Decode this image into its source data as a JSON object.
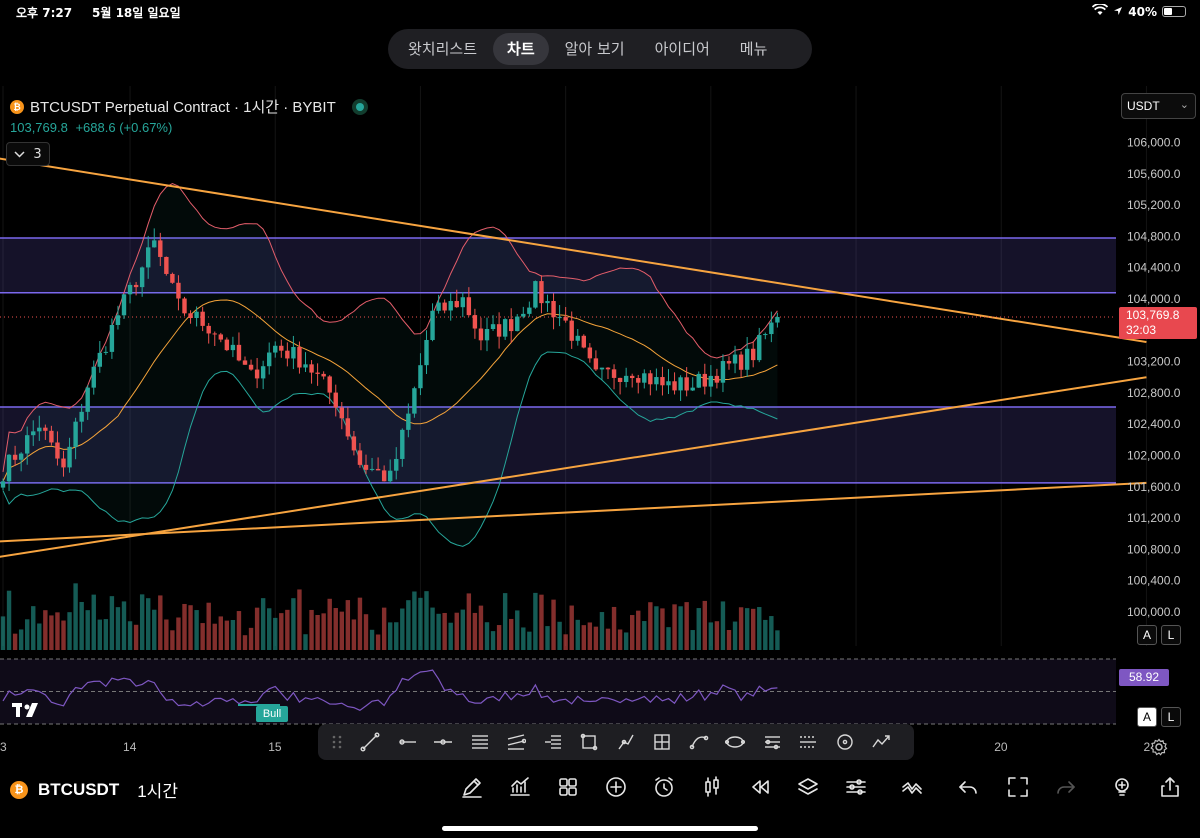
{
  "status_bar": {
    "time": "오후 7:27",
    "date": "5월 18일 일요일",
    "battery": "40%",
    "battery_level": 0.4
  },
  "top_tabs": [
    {
      "label": "왓치리스트",
      "active": false
    },
    {
      "label": "차트",
      "active": true
    },
    {
      "label": "알아 보기",
      "active": false
    },
    {
      "label": "아이디어",
      "active": false
    },
    {
      "label": "메뉴",
      "active": false
    }
  ],
  "legend": {
    "symbol_title": "BTCUSDT Perpetual Contract · 1시간 · BYBIT",
    "last_price": "103,769.8",
    "change": "+688.6 (+0.67%)",
    "collapsed_count": "3"
  },
  "currency": "USDT",
  "price_tag": {
    "price": "103,769.8",
    "countdown": "32:03"
  },
  "rsi_value": "58.92",
  "bull_label": "Bull",
  "scale_buttons": {
    "auto": "A",
    "log": "L"
  },
  "colors": {
    "bull": "#26a69a",
    "bear": "#ef5350",
    "trendline": "#f7a440",
    "zone": "#6a5acd",
    "bb_upper": "#e35d6a",
    "bb_lower": "#26a69a",
    "ma": "#f4a33a",
    "rsi": "#7e57c2"
  },
  "chart_data": {
    "type": "candlestick",
    "symbol": "BTCUSDT",
    "exchange": "BYBIT",
    "interval": "1시간",
    "y_ticks": [
      "106,000.0",
      "105,600.0",
      "105,200.0",
      "104,800.0",
      "104,400.0",
      "104,000.0",
      "103,200.0",
      "102,800.0",
      "102,400.0",
      "102,000.0",
      "101,600.0",
      "101,200.0",
      "100,800.0",
      "100,400.0",
      "100,000.0"
    ],
    "y_range": [
      99900,
      106200
    ],
    "x_ticks": [
      {
        "label": "3",
        "hour": 0
      },
      {
        "label": "14",
        "hour": 21
      },
      {
        "label": "15",
        "hour": 45
      },
      {
        "label": "20",
        "hour": 165
      },
      {
        "label": "2",
        "hour": 189
      }
    ],
    "price_waypoints": [
      [
        0,
        101800
      ],
      [
        6,
        102400
      ],
      [
        10,
        101800
      ],
      [
        14,
        102900
      ],
      [
        19,
        103800
      ],
      [
        25,
        104700
      ],
      [
        29,
        103900
      ],
      [
        35,
        103600
      ],
      [
        41,
        103000
      ],
      [
        45,
        103400
      ],
      [
        50,
        103200
      ],
      [
        55,
        102700
      ],
      [
        59,
        101900
      ],
      [
        64,
        101700
      ],
      [
        67,
        102500
      ],
      [
        71,
        103800
      ],
      [
        76,
        104000
      ],
      [
        79,
        103500
      ],
      [
        84,
        103700
      ],
      [
        88,
        104100
      ],
      [
        93,
        103700
      ],
      [
        98,
        103000
      ],
      [
        104,
        103100
      ],
      [
        109,
        102900
      ],
      [
        114,
        102900
      ],
      [
        119,
        103100
      ],
      [
        124,
        103300
      ],
      [
        128,
        103770
      ]
    ],
    "zones": [
      {
        "top": 104780,
        "bottom": 104080
      },
      {
        "top": 102620,
        "bottom": 101650
      }
    ],
    "trendlines": [
      {
        "from": [
          -1,
          105800
        ],
        "to": [
          189,
          103450
        ]
      },
      {
        "from": [
          -1,
          100700
        ],
        "to": [
          189,
          103000
        ]
      },
      {
        "from": [
          -1,
          100900
        ],
        "to": [
          189,
          101650
        ]
      }
    ],
    "rsi_bands": [
      70,
      50,
      30
    ],
    "rsi_last": 58.92
  }
}
